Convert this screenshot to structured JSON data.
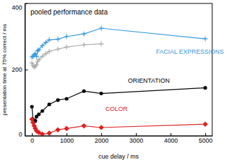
{
  "chart_data": {
    "type": "line",
    "title": "pooled performance data",
    "x_label": "cue delay / ms",
    "y_label": "presentation time at 75% correct / ms",
    "xlim": [
      -200,
      5200
    ],
    "ylim": [
      0,
      400
    ],
    "xticks": [
      0,
      1000,
      2000,
      3000,
      4000,
      5000
    ],
    "yticks": [
      0,
      200,
      400
    ],
    "grid": false,
    "series": [
      {
        "name": "FACIAL EXPRESSIONS",
        "color": "#3399dd",
        "marker": "plus",
        "x": [
          0,
          33,
          67,
          100,
          133,
          167,
          200,
          300,
          400,
          500,
          750,
          1000,
          1500,
          2000,
          5000
        ],
        "values": [
          238,
          240,
          245,
          248,
          240,
          257,
          260,
          272,
          282,
          290,
          292,
          300,
          308,
          325,
          293
        ]
      },
      {
        "color": "#aaaaaa",
        "marker": "plus",
        "x": [
          0,
          33,
          67,
          100,
          133,
          167,
          200,
          300,
          400,
          500,
          750,
          1000,
          1500,
          2000
        ],
        "values": [
          220,
          212,
          208,
          210,
          215,
          225,
          230,
          240,
          248,
          255,
          262,
          268,
          275,
          278
        ]
      },
      {
        "name": "ORIENTATION",
        "color": "#000000",
        "marker": "circle",
        "x": [
          0,
          33,
          67,
          100,
          133,
          200,
          300,
          500,
          750,
          1000,
          1500,
          2000,
          5000
        ],
        "values": [
          88,
          50,
          42,
          45,
          58,
          65,
          75,
          95,
          108,
          112,
          135,
          128,
          145
        ]
      },
      {
        "name": "COLOR",
        "color": "#dd2222",
        "marker": "diamond",
        "x": [
          0,
          33,
          67,
          100,
          133,
          200,
          300,
          500,
          750,
          1000,
          1500,
          2000,
          5000
        ],
        "values": [
          50,
          40,
          30,
          22,
          15,
          10,
          5,
          8,
          18,
          22,
          30,
          25,
          35
        ]
      }
    ]
  }
}
